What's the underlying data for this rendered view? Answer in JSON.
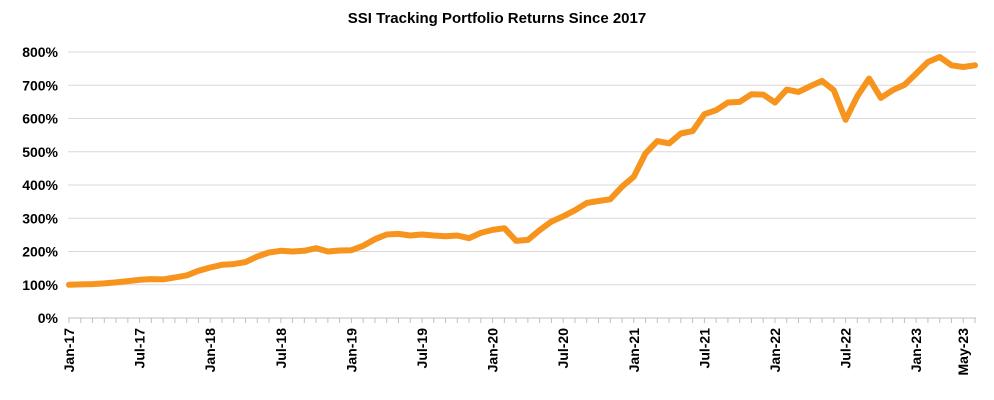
{
  "chart_data": {
    "type": "line",
    "title": "SSI Tracking Portfolio Returns Since 2017",
    "xlabel": "",
    "ylabel": "",
    "ylim": [
      0,
      800
    ],
    "yticks": [
      0,
      100,
      200,
      300,
      400,
      500,
      600,
      700,
      800
    ],
    "ytick_labels": [
      "0%",
      "100%",
      "200%",
      "300%",
      "400%",
      "500%",
      "600%",
      "700%",
      "800%"
    ],
    "xtick_labels": [
      "Jan-17",
      "Jul-17",
      "Jan-18",
      "Jul-18",
      "Jan-19",
      "Jul-19",
      "Jan-20",
      "Jul-20",
      "Jan-21",
      "Jul-21",
      "Jan-22",
      "Jul-22",
      "Jan-23",
      "May-23"
    ],
    "xtick_months": [
      0,
      6,
      12,
      18,
      24,
      30,
      36,
      42,
      48,
      54,
      60,
      66,
      72,
      76
    ],
    "grid": true,
    "series": [
      {
        "name": "SSI Tracking Portfolio",
        "color": "#F7941D",
        "x_months": [
          0,
          1,
          2,
          3,
          4,
          5,
          6,
          7,
          8,
          9,
          10,
          11,
          12,
          13,
          14,
          15,
          16,
          17,
          18,
          19,
          20,
          21,
          22,
          23,
          24,
          25,
          26,
          27,
          28,
          29,
          30,
          31,
          32,
          33,
          34,
          35,
          36,
          37,
          38,
          39,
          40,
          41,
          42,
          43,
          44,
          45,
          46,
          47,
          48,
          49,
          50,
          51,
          52,
          53,
          54,
          55,
          56,
          57,
          58,
          59,
          60,
          61,
          62,
          63,
          64,
          65,
          66,
          67,
          68,
          69,
          70,
          71,
          72,
          73,
          74,
          75,
          76,
          77
        ],
        "values": [
          100,
          101,
          102,
          104,
          107,
          111,
          115,
          117,
          116,
          122,
          128,
          142,
          152,
          160,
          162,
          168,
          185,
          197,
          202,
          200,
          202,
          210,
          200,
          203,
          204,
          217,
          237,
          251,
          253,
          248,
          251,
          248,
          246,
          248,
          240,
          256,
          265,
          270,
          232,
          235,
          264,
          290,
          306,
          324,
          346,
          352,
          357,
          395,
          425,
          495,
          532,
          525,
          555,
          562,
          613,
          625,
          648,
          650,
          673,
          672,
          648,
          687,
          680,
          697,
          713,
          685,
          596,
          667,
          720,
          662,
          685,
          701,
          735,
          770,
          785,
          760,
          755,
          760
        ]
      }
    ]
  }
}
